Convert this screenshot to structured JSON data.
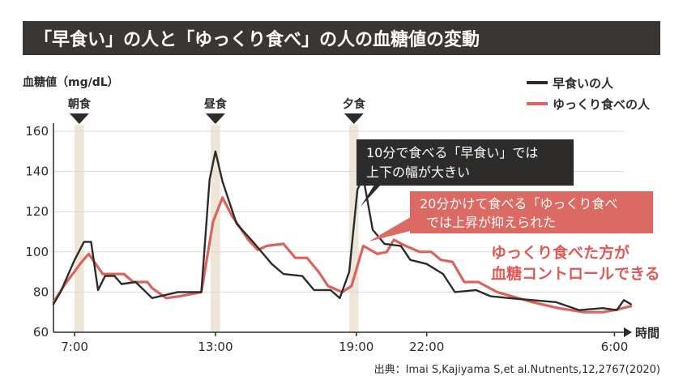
{
  "title": "「早食い」の人と「ゆっくり食べ」の人の血糖値の変動",
  "source": "出典：Imai S,Kajiyama S,et al.Nutnents,12,2767(2020)",
  "annotations": {
    "fast_box": [
      "10分で食べる「早食い」では",
      "上下の幅が大きい"
    ],
    "slow_box": [
      "20分かけて食べる「ゆっくり食べ",
      "では上昇が抑えられた"
    ],
    "conclusion": [
      "ゆっくり食べた方が",
      "血糖コントロールできる"
    ]
  },
  "colors": {
    "title_bg": "#3a3634",
    "fast": "#2e2c2b",
    "slow": "#d9645f",
    "meal_band": "#eee6d6",
    "grid": "#dcd8d4",
    "slow_box": "#dc6a64",
    "conclusion_text": "#e05a55"
  },
  "chart_data": {
    "type": "line",
    "xlabel": "時間",
    "ylabel": "血糖値（mg/dL）",
    "ylim": [
      60,
      160
    ],
    "yticks": [
      60,
      80,
      100,
      120,
      140,
      160
    ],
    "xticks": [
      {
        "label": "7:00",
        "hour": 7
      },
      {
        "label": "13:00",
        "hour": 13
      },
      {
        "label": "19:00",
        "hour": 19
      },
      {
        "label": "22:00",
        "hour": 22
      },
      {
        "label": "6:00",
        "hour": 30
      }
    ],
    "xlim": [
      6.1,
      30.4
    ],
    "meals": [
      {
        "label": "朝食",
        "start": 7.0,
        "end": 7.4
      },
      {
        "label": "昼食",
        "start": 12.8,
        "end": 13.2
      },
      {
        "label": "夕食",
        "start": 18.7,
        "end": 19.1
      }
    ],
    "legend_position": "top-right",
    "series": [
      {
        "name": "早食いの人",
        "color": "#2e2c2b",
        "points": [
          [
            6.1,
            74
          ],
          [
            6.4,
            80
          ],
          [
            7.0,
            96
          ],
          [
            7.4,
            105
          ],
          [
            7.7,
            105
          ],
          [
            8.0,
            81
          ],
          [
            8.3,
            88
          ],
          [
            8.7,
            88
          ],
          [
            9.0,
            84
          ],
          [
            9.6,
            85
          ],
          [
            10.3,
            77
          ],
          [
            11.4,
            80
          ],
          [
            12.4,
            80
          ],
          [
            12.75,
            136
          ],
          [
            13.0,
            150
          ],
          [
            13.3,
            135
          ],
          [
            13.9,
            114
          ],
          [
            14.6,
            105
          ],
          [
            15.4,
            94
          ],
          [
            15.9,
            89
          ],
          [
            16.7,
            88
          ],
          [
            17.2,
            81
          ],
          [
            17.9,
            81
          ],
          [
            18.3,
            77
          ],
          [
            18.7,
            90
          ],
          [
            19.05,
            131
          ],
          [
            19.3,
            137
          ],
          [
            19.7,
            111
          ],
          [
            20.2,
            104
          ],
          [
            20.9,
            103
          ],
          [
            21.3,
            96
          ],
          [
            22.0,
            94
          ],
          [
            22.7,
            89
          ],
          [
            23.2,
            80
          ],
          [
            24.1,
            81
          ],
          [
            24.7,
            78
          ],
          [
            25.5,
            77
          ],
          [
            26.5,
            76
          ],
          [
            27.5,
            75
          ],
          [
            28.5,
            71
          ],
          [
            29.5,
            72
          ],
          [
            30.1,
            71
          ],
          [
            30.4,
            76
          ],
          [
            30.7,
            74
          ]
        ]
      },
      {
        "name": "ゆっくり食べの人",
        "color": "#d9645f",
        "points": [
          [
            6.1,
            75
          ],
          [
            6.6,
            84
          ],
          [
            7.3,
            95
          ],
          [
            7.6,
            99
          ],
          [
            8.2,
            89
          ],
          [
            8.7,
            89
          ],
          [
            9.1,
            89
          ],
          [
            9.5,
            85
          ],
          [
            10.1,
            85
          ],
          [
            10.3,
            82
          ],
          [
            10.9,
            77
          ],
          [
            11.5,
            78
          ],
          [
            12.4,
            80
          ],
          [
            12.9,
            115
          ],
          [
            13.3,
            127
          ],
          [
            13.7,
            118
          ],
          [
            14.4,
            106
          ],
          [
            14.8,
            101
          ],
          [
            15.2,
            103
          ],
          [
            15.9,
            104
          ],
          [
            16.4,
            97
          ],
          [
            16.9,
            97
          ],
          [
            17.4,
            90
          ],
          [
            17.8,
            83
          ],
          [
            18.4,
            80
          ],
          [
            18.8,
            83
          ],
          [
            19.3,
            103
          ],
          [
            19.9,
            99
          ],
          [
            20.3,
            100
          ],
          [
            20.6,
            106
          ],
          [
            21.1,
            103
          ],
          [
            21.7,
            100
          ],
          [
            22.2,
            100
          ],
          [
            22.6,
            96
          ],
          [
            23.1,
            95
          ],
          [
            23.6,
            85
          ],
          [
            24.2,
            85
          ],
          [
            25.0,
            80
          ],
          [
            26.5,
            75
          ],
          [
            27.6,
            72
          ],
          [
            28.7,
            70
          ],
          [
            29.5,
            70
          ],
          [
            30.0,
            71
          ],
          [
            30.7,
            73
          ]
        ]
      }
    ]
  }
}
